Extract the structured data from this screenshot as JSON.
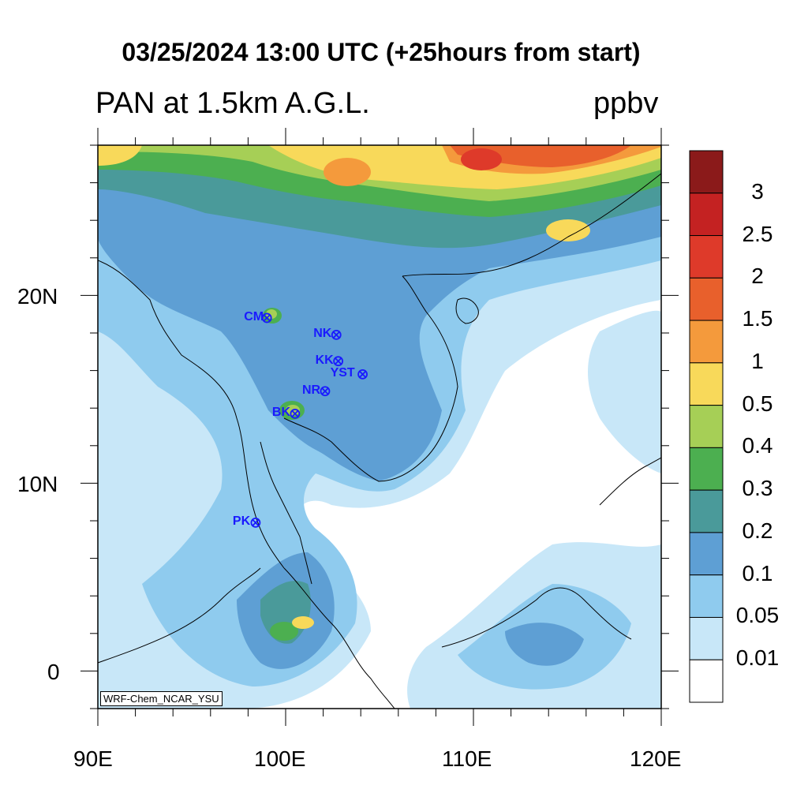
{
  "title": "03/25/2024 13:00 UTC (+25hours from start)",
  "subtitle": "PAN at 1.5km A.G.L.",
  "units": "ppbv",
  "watermark": "WRF-Chem_NCAR_YSU",
  "axes": {
    "x_ticks": [
      "90E",
      "100E",
      "110E",
      "120E"
    ],
    "y_ticks": [
      "20N",
      "10N",
      "0"
    ],
    "lon_range": [
      90,
      120
    ],
    "lat_range": [
      -2,
      28
    ]
  },
  "colorbar": {
    "labels": [
      "3",
      "2.5",
      "2",
      "1.5",
      "1",
      "0.5",
      "0.4",
      "0.3",
      "0.2",
      "0.1",
      "0.05",
      "0.01"
    ],
    "colors_top_to_bottom": [
      "#8b1a1a",
      "#c42222",
      "#de3a2a",
      "#e8602c",
      "#f49a3c",
      "#f8d95a",
      "#a6cf56",
      "#4caf50",
      "#4a9a9a",
      "#5e9fd4",
      "#8fcbee",
      "#c8e7f8",
      "#ffffff"
    ]
  },
  "stations": [
    {
      "code": "CM",
      "lon": 99.0,
      "lat": 18.8
    },
    {
      "code": "NK",
      "lon": 102.7,
      "lat": 17.9
    },
    {
      "code": "KK",
      "lon": 102.8,
      "lat": 16.5
    },
    {
      "code": "YST",
      "lon": 104.1,
      "lat": 15.8
    },
    {
      "code": "NR",
      "lon": 102.1,
      "lat": 14.9
    },
    {
      "code": "BK",
      "lon": 100.5,
      "lat": 13.7
    },
    {
      "code": "PK",
      "lon": 98.4,
      "lat": 7.9
    }
  ]
}
